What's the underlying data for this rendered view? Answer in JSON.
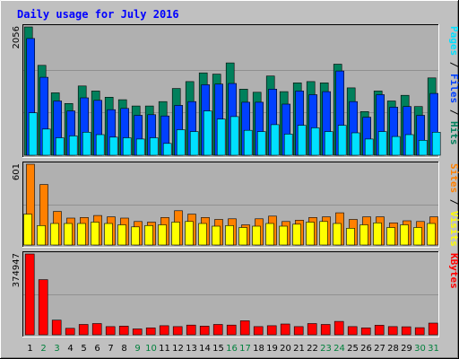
{
  "chart_data": {
    "type": "bar",
    "title": "Daily usage for July 2016",
    "categories": [
      "1",
      "2",
      "3",
      "4",
      "5",
      "6",
      "7",
      "8",
      "9",
      "10",
      "11",
      "12",
      "13",
      "14",
      "15",
      "16",
      "17",
      "18",
      "19",
      "20",
      "21",
      "22",
      "23",
      "24",
      "25",
      "26",
      "27",
      "28",
      "29",
      "30",
      "31"
    ],
    "weekend_days": [
      "2",
      "3",
      "9",
      "10",
      "16",
      "17",
      "23",
      "24",
      "30",
      "31"
    ],
    "colors": {
      "background": "#c0c0c0",
      "plot_background": "#b0b0b0",
      "title": "#0000ff",
      "weekday_label": "#000000",
      "weekend_label": "#00803c",
      "hits": "#00805c",
      "files": "#0040ff",
      "pages": "#00e0ff",
      "visits": "#ffff00",
      "sites": "#ff8000",
      "kbytes": "#ff0000"
    },
    "panels": [
      {
        "ymax_label": "2056",
        "ylim": [
          0,
          2056
        ],
        "legend": [
          {
            "label": "Pages",
            "color": "#00e0ff"
          },
          {
            "label": " / ",
            "color": "#000000"
          },
          {
            "label": "Files",
            "color": "#0040ff"
          },
          {
            "label": " / ",
            "color": "#000000"
          },
          {
            "label": "Hits",
            "color": "#00805c"
          }
        ],
        "series": [
          {
            "name": "Hits",
            "color": "#00805c",
            "values": [
              2056,
              1440,
              1000,
              830,
              1110,
              1030,
              930,
              890,
              790,
              790,
              860,
              1070,
              1180,
              1320,
              1300,
              1480,
              1060,
              1010,
              1270,
              1020,
              1160,
              1180,
              1160,
              1460,
              1080,
              700,
              1030,
              870,
              960,
              780,
              1240
            ]
          },
          {
            "name": "Files",
            "color": "#0040ff",
            "values": [
              1870,
              1250,
              870,
              710,
              920,
              880,
              730,
              750,
              640,
              650,
              630,
              800,
              860,
              1130,
              1140,
              1150,
              850,
              850,
              1060,
              820,
              1030,
              970,
              1020,
              1350,
              860,
              610,
              970,
              770,
              780,
              640,
              990
            ]
          },
          {
            "name": "Pages",
            "color": "#00e0ff",
            "values": [
              680,
              420,
              280,
              310,
              370,
              330,
              290,
              280,
              260,
              280,
              190,
              410,
              380,
              710,
              580,
              620,
              400,
              380,
              490,
              340,
              480,
              440,
              380,
              480,
              360,
              260,
              380,
              300,
              330,
              240,
              370
            ]
          }
        ]
      },
      {
        "ymax_label": "601",
        "ylim": [
          0,
          601
        ],
        "legend": [
          {
            "label": "Sites",
            "color": "#ff8000"
          },
          {
            "label": " / ",
            "color": "#000000"
          },
          {
            "label": "Visits",
            "color": "#ffff00"
          }
        ],
        "series": [
          {
            "name": "Sites",
            "color": "#ff8000",
            "values": [
              601,
              450,
              250,
              200,
              205,
              220,
              210,
              200,
              175,
              170,
              205,
              255,
              230,
              205,
              190,
              195,
              150,
              195,
              215,
              175,
              185,
              205,
              210,
              240,
              190,
              210,
              210,
              165,
              180,
              175,
              210
            ]
          },
          {
            "name": "Visits",
            "color": "#ffff00",
            "values": [
              230,
              145,
              160,
              160,
              160,
              170,
              160,
              150,
              135,
              145,
              150,
              170,
              175,
              160,
              140,
              145,
              130,
              140,
              160,
              140,
              155,
              170,
              175,
              160,
              125,
              150,
              165,
              130,
              150,
              130,
              160
            ]
          }
        ]
      },
      {
        "ymax_label": "374947",
        "ylim": [
          0,
          374947
        ],
        "legend": [
          {
            "label": "KBytes",
            "color": "#ff0000"
          }
        ],
        "series": [
          {
            "name": "KBytes",
            "color": "#ff0000",
            "values": [
              374947,
              256000,
              68000,
              30000,
              48000,
              52000,
              38000,
              40000,
              27000,
              32000,
              42000,
              38000,
              45000,
              40000,
              48000,
              45000,
              65000,
              38000,
              42000,
              50000,
              38000,
              52000,
              48000,
              62000,
              38000,
              32000,
              44000,
              38000,
              37000,
              33000,
              54000
            ]
          }
        ]
      }
    ]
  }
}
